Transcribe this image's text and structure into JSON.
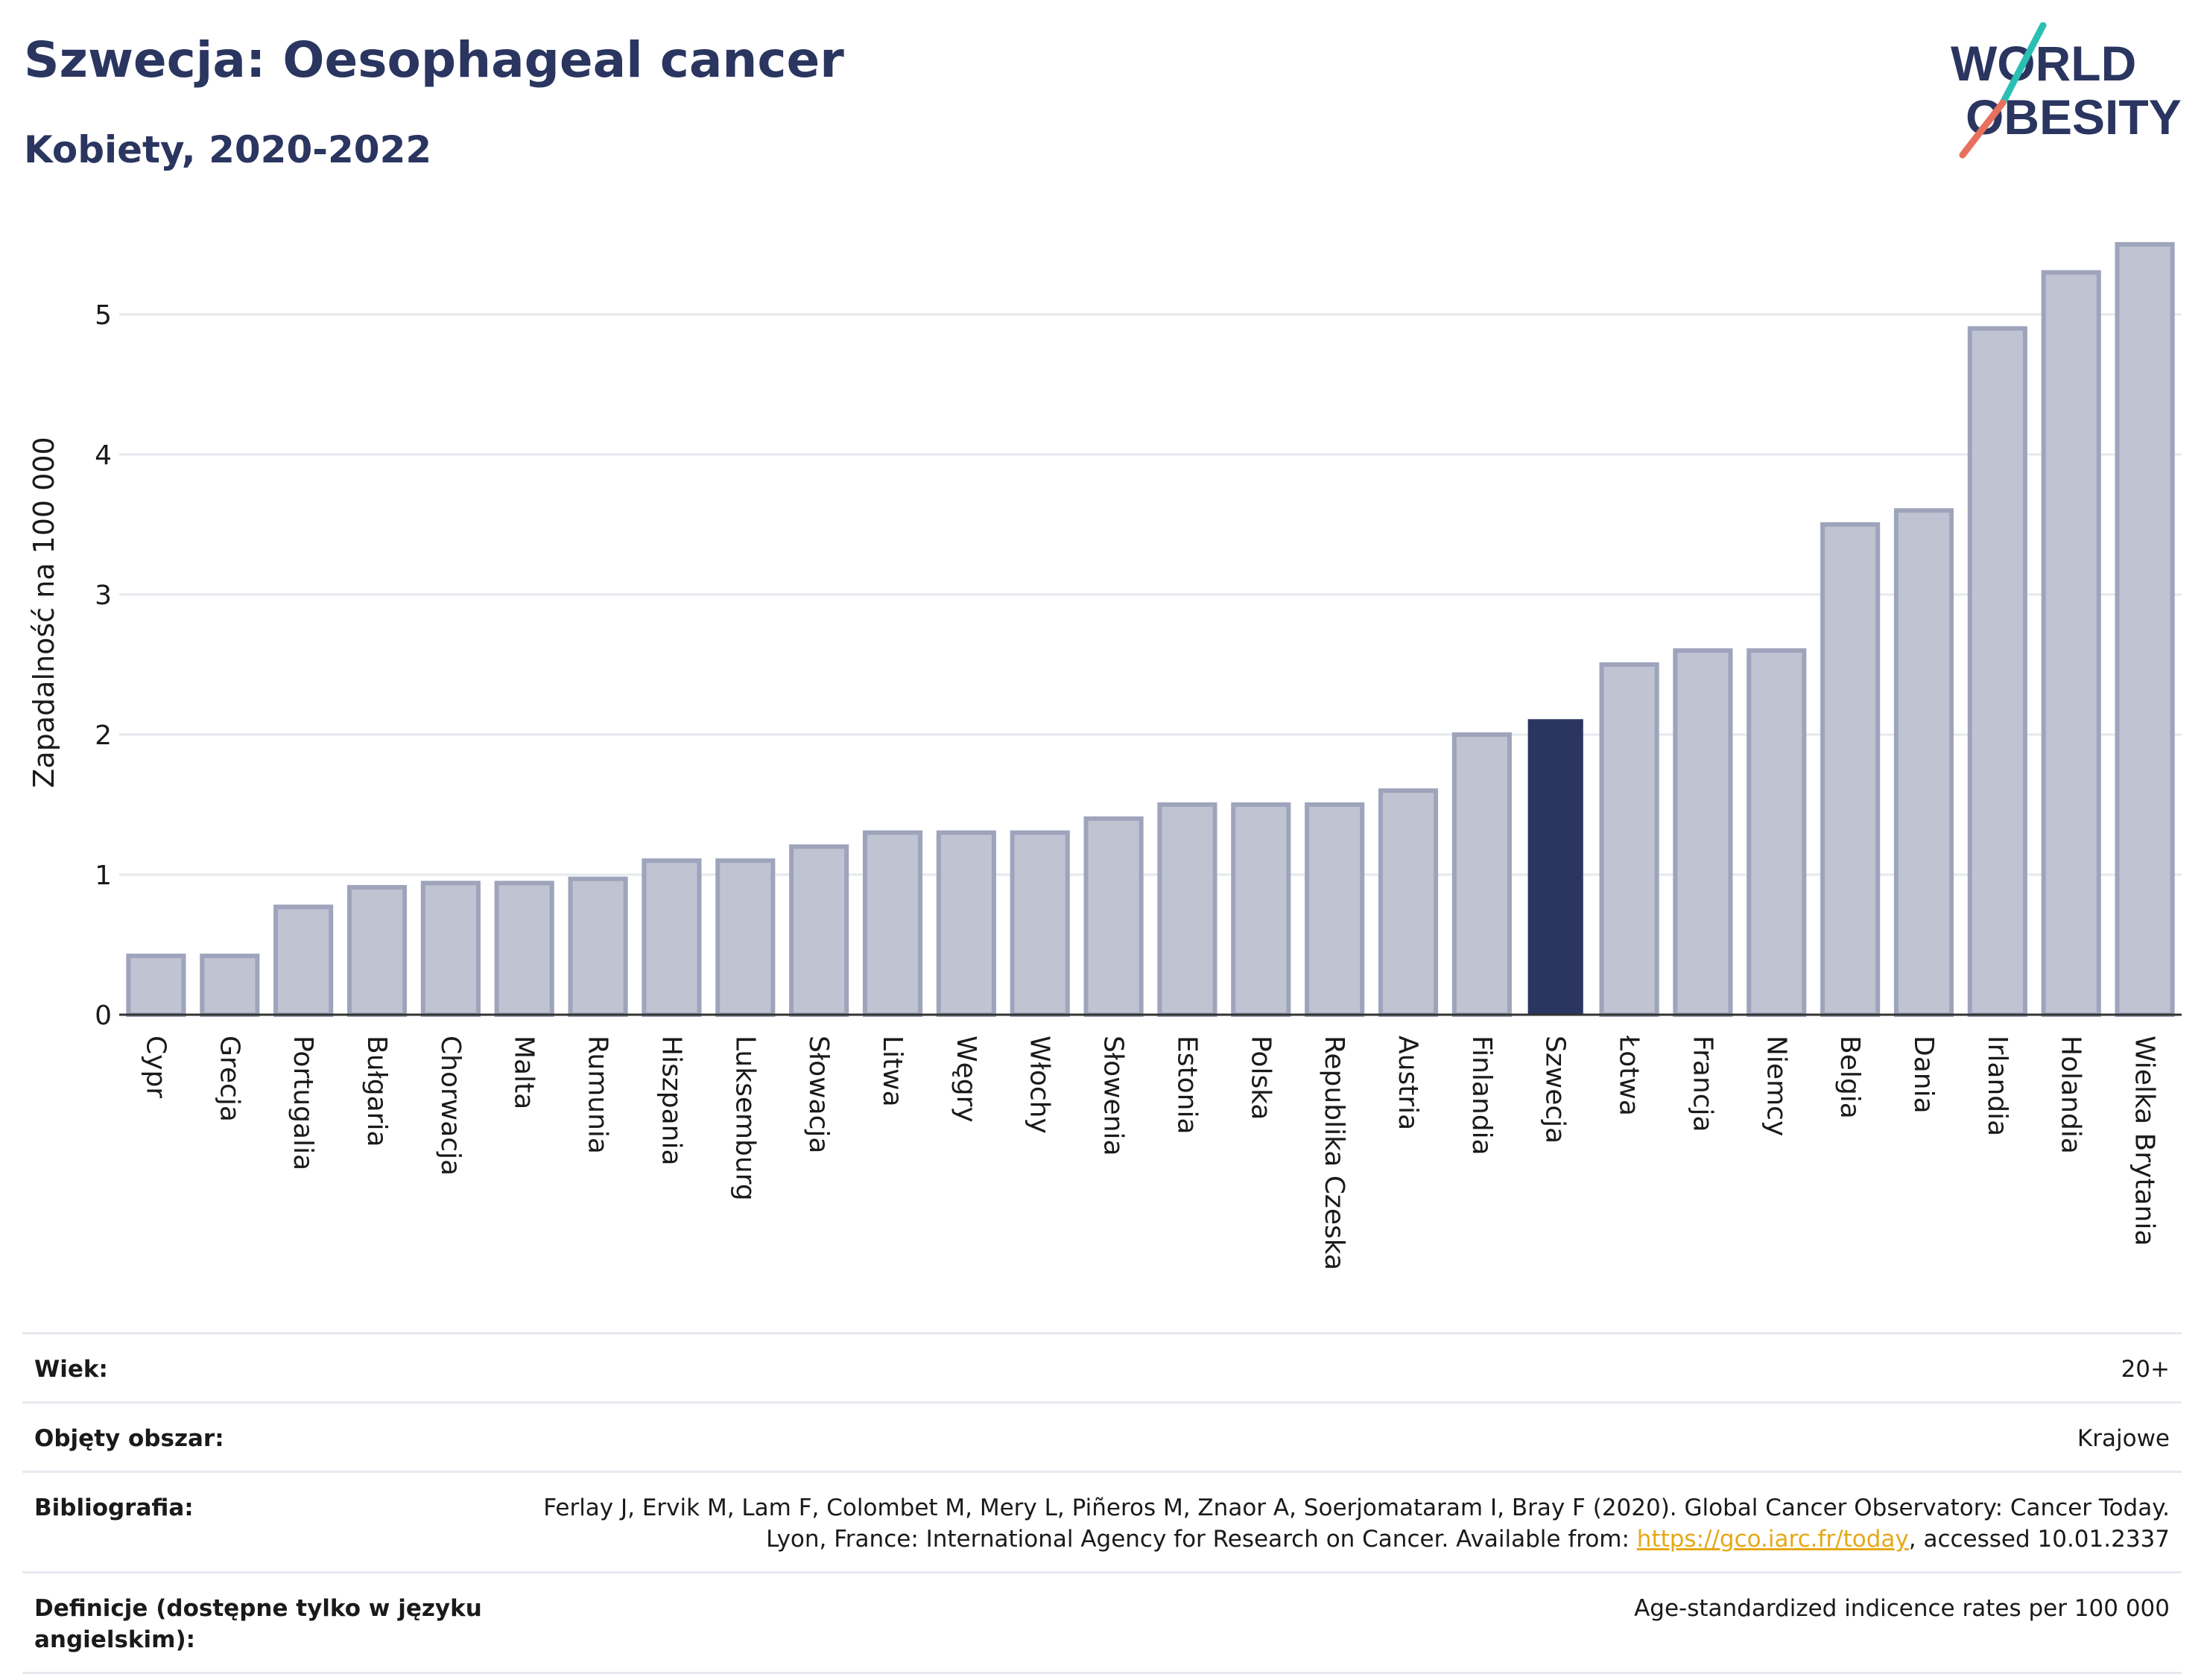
{
  "header": {
    "title": "Szwecja: Oesophageal cancer",
    "subtitle": "Kobiety, 2020-2022"
  },
  "logo": {
    "line1": "WORLD",
    "line2": "OBESITY"
  },
  "chart_data": {
    "type": "bar",
    "ylabel": "Zapadalność na 100 000",
    "xlabel": "",
    "ylim": [
      0,
      5.6
    ],
    "yticks": [
      0,
      1,
      2,
      3,
      4,
      5
    ],
    "grid": true,
    "highlight": "Szwecja",
    "colors": {
      "bar": "#bfc3d2",
      "bar_border": "#9ea4bb",
      "highlight": "#2a3560",
      "grid": "#e6e8ee",
      "axis": "#333333"
    },
    "categories": [
      "Cypr",
      "Grecja",
      "Portugalia",
      "Bułgaria",
      "Chorwacja",
      "Malta",
      "Rumunia",
      "Hiszpania",
      "Luksemburg",
      "Słowacja",
      "Litwa",
      "Węgry",
      "Włochy",
      "Słowenia",
      "Estonia",
      "Polska",
      "Republika Czeska",
      "Austria",
      "Finlandia",
      "Szwecja",
      "Łotwa",
      "Francja",
      "Niemcy",
      "Belgia",
      "Dania",
      "Irlandia",
      "Holandia",
      "Wielka Brytania"
    ],
    "values": [
      0.42,
      0.42,
      0.77,
      0.91,
      0.94,
      0.94,
      0.97,
      1.1,
      1.1,
      1.2,
      1.3,
      1.3,
      1.3,
      1.4,
      1.5,
      1.5,
      1.5,
      1.6,
      2.0,
      2.11,
      2.5,
      2.6,
      2.6,
      3.5,
      3.6,
      4.9,
      5.3,
      5.5
    ]
  },
  "meta": {
    "rows": [
      {
        "label": "Wiek:",
        "value": "20+"
      },
      {
        "label": "Objęty obszar:",
        "value": "Krajowe"
      },
      {
        "label": "Bibliografia:",
        "value_before": "Ferlay J, Ervik M, Lam F, Colombet M, Mery L, Piñeros M, Znaor A, Soerjomataram I, Bray F (2020). Global Cancer Observatory: Cancer Today. Lyon, France: International Agency for Research on Cancer. Available from: ",
        "link": "https://gco.iarc.fr/today",
        "value_after": ", accessed 10.01.2337"
      },
      {
        "label": "Definicje (dostępne tylko w języku angielskim):",
        "value": "Age-standardized indicence rates per 100 000"
      }
    ]
  }
}
